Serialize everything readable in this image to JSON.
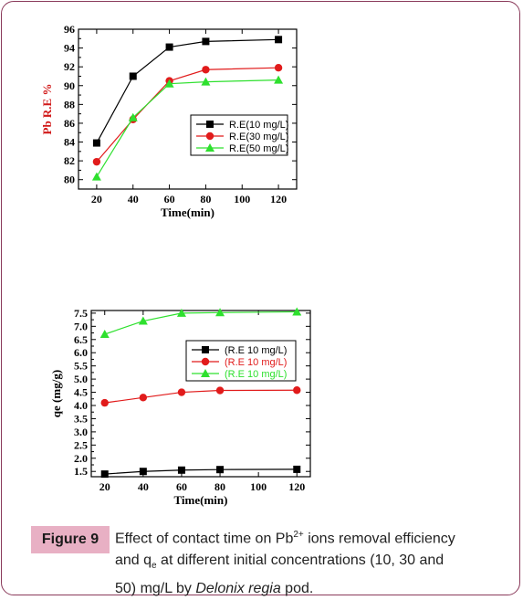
{
  "chart_data": [
    {
      "type": "line",
      "x": [
        20,
        40,
        60,
        80,
        120
      ],
      "xlabel": "Time(min)",
      "ylabel": "Pb R.E %",
      "xticks": [
        "20",
        "40",
        "60",
        "80",
        "100",
        "120"
      ],
      "yticks": [
        "80",
        "82",
        "84",
        "86",
        "88",
        "90",
        "92",
        "94",
        "96"
      ],
      "xlim": [
        10,
        130
      ],
      "ylim": [
        79,
        96
      ],
      "legend_position": "right-middle",
      "series": [
        {
          "name": "R.E(10 mg/L)",
          "marker": "square",
          "color": "#000000",
          "values": [
            83.9,
            91.0,
            94.1,
            94.7,
            94.9
          ]
        },
        {
          "name": "R.E(30 mg/L)",
          "marker": "circle",
          "color": "#e11b1b",
          "values": [
            81.9,
            86.4,
            90.5,
            91.7,
            91.9
          ]
        },
        {
          "name": "R.E(50 mg/L)",
          "marker": "triangle",
          "color": "#2ee02e",
          "values": [
            80.3,
            86.6,
            90.2,
            90.4,
            90.6
          ]
        }
      ]
    },
    {
      "type": "line",
      "x": [
        20,
        40,
        60,
        80,
        120
      ],
      "xlabel": "Time(min)",
      "ylabel": "qe (mg/g)",
      "xticks": [
        "20",
        "40",
        "60",
        "80",
        "100",
        "120"
      ],
      "yticks": [
        "1.5",
        "2.0",
        "2.5",
        "3.0",
        "3.5",
        "4.0",
        "4.5",
        "5.0",
        "5.5",
        "6.0",
        "6.5",
        "7.0",
        "7.5"
      ],
      "xlim": [
        13,
        127
      ],
      "ylim": [
        1.3,
        7.6
      ],
      "legend_position": "right-middle",
      "series": [
        {
          "name": "(R.E 10 mg/L)",
          "marker": "square",
          "color": "#000000",
          "values": [
            1.4,
            1.5,
            1.55,
            1.57,
            1.58
          ]
        },
        {
          "name": "(R.E 10 mg/L)",
          "marker": "circle",
          "color": "#e11b1b",
          "values": [
            4.1,
            4.3,
            4.5,
            4.57,
            4.58
          ]
        },
        {
          "name": "(R.E 10 mg/L)",
          "marker": "triangle",
          "color": "#2ee02e",
          "values": [
            6.7,
            7.2,
            7.5,
            7.52,
            7.55
          ]
        }
      ]
    }
  ],
  "caption": {
    "label": "Figure 9",
    "line1_a": "Effect of contact time on Pb",
    "line1_sup": "2+",
    "line1_b": " ions removal efficiency",
    "line2_a": "and q",
    "line2_sub": "e",
    "line2_b": " at different initial concentrations  (10, 30 and",
    "line3_a": "50) mg/L by ",
    "line3_italic": "Delonix regia",
    "line3_b": " pod."
  }
}
